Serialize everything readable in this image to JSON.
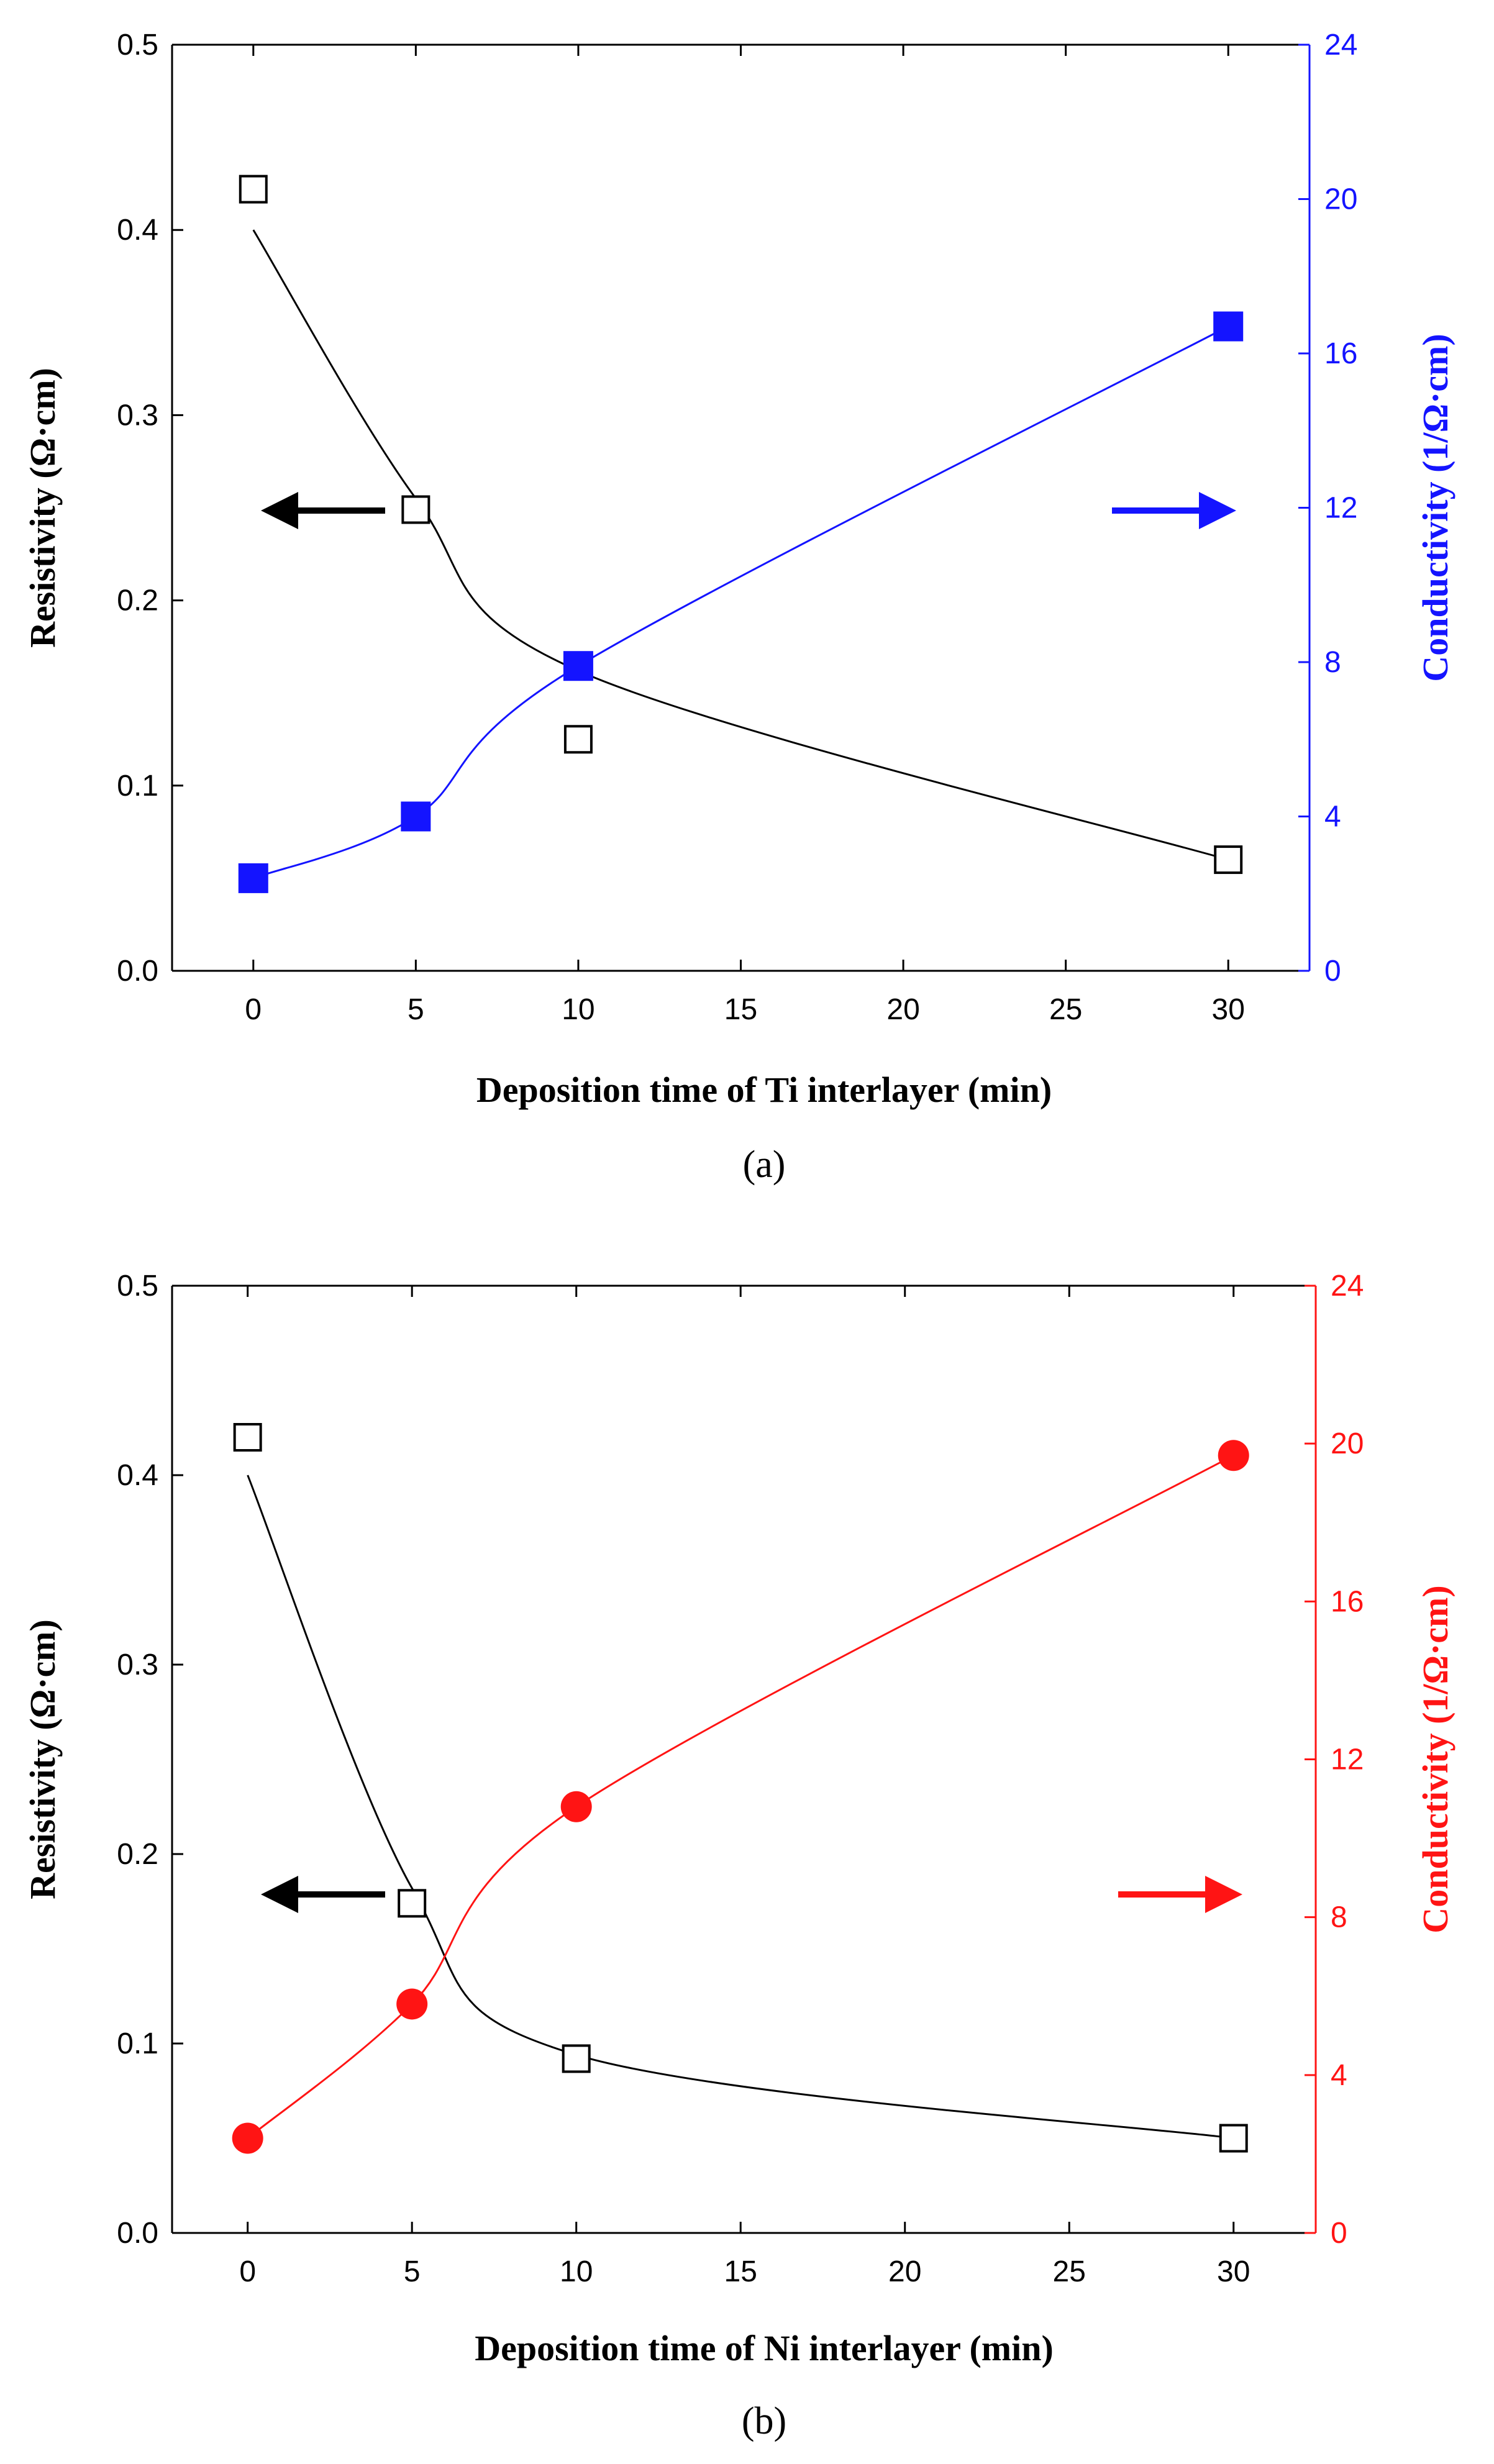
{
  "chart_data": [
    {
      "type": "line",
      "panel_label": "(a)",
      "xlabel": "Deposition time of Ti interlayer (min)",
      "ylabel": "Resistivity (Ω·cm)",
      "y2label": "Conductivity (1/Ω·cm)",
      "x_ticks": [
        0,
        5,
        10,
        15,
        20,
        25,
        30
      ],
      "xlim": [
        -2.5,
        32.5
      ],
      "y_ticks": [
        "0.0",
        "0.1",
        "0.2",
        "0.3",
        "0.4",
        "0.5"
      ],
      "ylim": [
        0,
        0.5
      ],
      "y2_ticks": [
        "0",
        "4",
        "8",
        "12",
        "16",
        "20",
        "24"
      ],
      "y2lim": [
        0,
        24
      ],
      "accent_color": "#1414ff",
      "series": [
        {
          "name": "Resistivity",
          "axis": "left",
          "marker": "open-square",
          "color": "#000000",
          "x": [
            0,
            5,
            10,
            30
          ],
          "values": [
            0.422,
            0.249,
            0.125,
            0.06
          ],
          "fit_values": [
            0.4,
            0.255,
            0.162,
            0.06
          ]
        },
        {
          "name": "Conductivity",
          "axis": "right",
          "marker": "filled-square",
          "color": "#1414ff",
          "x": [
            0,
            5,
            10,
            30
          ],
          "values": [
            2.4,
            4.0,
            7.9,
            16.7
          ]
        }
      ],
      "annotations": [
        {
          "type": "arrow-left",
          "note": "resistivity axis",
          "color": "#000000"
        },
        {
          "type": "arrow-right",
          "note": "conductivity axis",
          "color": "#1414ff"
        }
      ]
    },
    {
      "type": "line",
      "panel_label": "(b)",
      "xlabel": "Deposition time of Ni interlayer (min)",
      "ylabel": "Resistivity (Ω·cm)",
      "y2label": "Conductivity (1/Ω·cm)",
      "x_ticks": [
        0,
        5,
        10,
        15,
        20,
        25,
        30
      ],
      "xlim": [
        -2.3,
        32.5
      ],
      "y_ticks": [
        "0.0",
        "0.1",
        "0.2",
        "0.3",
        "0.4",
        "0.5"
      ],
      "ylim": [
        0,
        0.5
      ],
      "y2_ticks": [
        "0",
        "4",
        "8",
        "12",
        "16",
        "20",
        "24"
      ],
      "y2lim": [
        0,
        24
      ],
      "accent_color": "#ff1414",
      "series": [
        {
          "name": "Resistivity",
          "axis": "left",
          "marker": "open-square",
          "color": "#000000",
          "x": [
            0,
            5,
            10,
            30
          ],
          "values": [
            0.42,
            0.174,
            0.092,
            0.05
          ],
          "fit_values": [
            0.4,
            0.182,
            0.094,
            0.05
          ]
        },
        {
          "name": "Conductivity",
          "axis": "right",
          "marker": "filled-circle",
          "color": "#ff1414",
          "x": [
            0,
            5,
            10,
            30
          ],
          "values": [
            2.4,
            5.8,
            10.8,
            19.7
          ]
        }
      ],
      "annotations": [
        {
          "type": "arrow-left",
          "note": "resistivity axis",
          "color": "#000000"
        },
        {
          "type": "arrow-right",
          "note": "conductivity axis",
          "color": "#ff1414"
        }
      ]
    }
  ]
}
